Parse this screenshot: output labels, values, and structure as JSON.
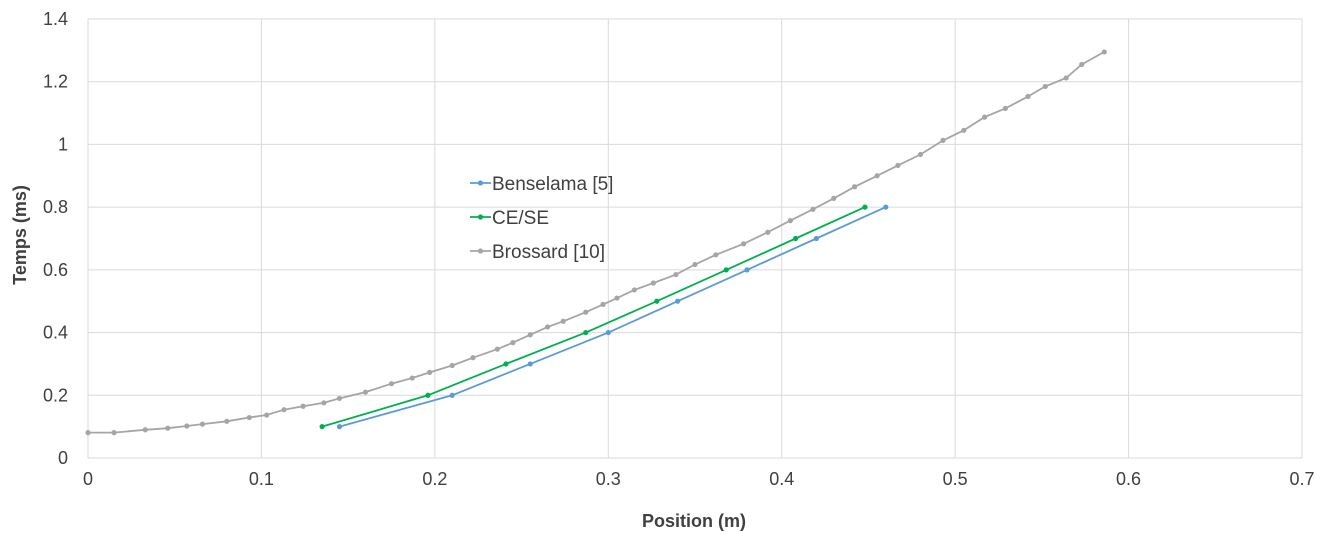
{
  "chart_data": {
    "type": "line",
    "title": "",
    "xlabel": "Position (m)",
    "ylabel": "Temps (ms)",
    "xlim": [
      0,
      0.7
    ],
    "ylim": [
      0,
      1.4
    ],
    "xticks": [
      "0",
      "0.1",
      "0.2",
      "0.3",
      "0.4",
      "0.5",
      "0.6",
      "0.7"
    ],
    "yticks": [
      "0",
      "0.2",
      "0.4",
      "0.6",
      "0.8",
      "1",
      "1.2",
      "1.4"
    ],
    "grid": true,
    "legend_position": "center-left",
    "series": [
      {
        "name": "Benselama [5]",
        "color": "#5b9bd5",
        "x": [
          0.145,
          0.21,
          0.255,
          0.3,
          0.34,
          0.38,
          0.42,
          0.46
        ],
        "y": [
          0.1,
          0.2,
          0.3,
          0.4,
          0.5,
          0.6,
          0.7,
          0.8
        ]
      },
      {
        "name": "CE/SE",
        "color": "#00b050",
        "x": [
          0.135,
          0.196,
          0.241,
          0.287,
          0.328,
          0.368,
          0.408,
          0.448
        ],
        "y": [
          0.1,
          0.2,
          0.3,
          0.4,
          0.5,
          0.6,
          0.7,
          0.8
        ]
      },
      {
        "name": "Brossard [10]",
        "color": "#a5a5a5",
        "x": [
          0,
          0.015,
          0.033,
          0.046,
          0.057,
          0.066,
          0.08,
          0.093,
          0.103,
          0.113,
          0.124,
          0.136,
          0.145,
          0.16,
          0.175,
          0.187,
          0.197,
          0.21,
          0.222,
          0.236,
          0.245,
          0.255,
          0.265,
          0.274,
          0.287,
          0.297,
          0.305,
          0.315,
          0.326,
          0.339,
          0.35,
          0.362,
          0.378,
          0.392,
          0.405,
          0.418,
          0.43,
          0.442,
          0.455,
          0.467,
          0.48,
          0.493,
          0.505,
          0.517,
          0.529,
          0.542,
          0.552,
          0.564,
          0.573,
          0.586
        ],
        "y": [
          0.081,
          0.081,
          0.09,
          0.095,
          0.102,
          0.108,
          0.117,
          0.129,
          0.137,
          0.154,
          0.165,
          0.176,
          0.19,
          0.21,
          0.237,
          0.255,
          0.273,
          0.295,
          0.32,
          0.347,
          0.368,
          0.393,
          0.418,
          0.436,
          0.465,
          0.49,
          0.51,
          0.536,
          0.558,
          0.585,
          0.617,
          0.648,
          0.683,
          0.72,
          0.757,
          0.793,
          0.828,
          0.865,
          0.9,
          0.933,
          0.968,
          1.013,
          1.045,
          1.087,
          1.115,
          1.153,
          1.185,
          1.212,
          1.255,
          1.295
        ]
      }
    ]
  }
}
